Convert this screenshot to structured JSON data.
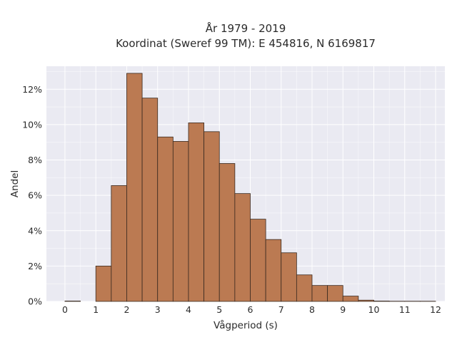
{
  "chart_data": {
    "type": "bar",
    "title_lines": [
      "År 1979 - 2019",
      "Koordinat (Sweref 99 TM): E 454816, N 6169817"
    ],
    "xlabel": "Vågperiod (s)",
    "ylabel": "Andel",
    "x_ticks": [
      "0",
      "1",
      "2",
      "3",
      "4",
      "5",
      "6",
      "7",
      "8",
      "9",
      "10",
      "11",
      "12"
    ],
    "y_ticks": [
      "0%",
      "2%",
      "4%",
      "6%",
      "8%",
      "10%",
      "12%"
    ],
    "xlim": [
      -0.6,
      12.3
    ],
    "ylim": [
      0,
      13.3
    ],
    "bin_width": 0.5,
    "bin_starts": [
      0,
      0.5,
      1,
      1.5,
      2,
      2.5,
      3,
      3.5,
      4,
      4.5,
      5,
      5.5,
      6,
      6.5,
      7,
      7.5,
      8,
      8.5,
      9,
      9.5,
      10,
      10.5,
      11,
      11.5
    ],
    "values": [
      0.02,
      0,
      2.0,
      6.55,
      12.9,
      11.5,
      9.3,
      9.05,
      10.1,
      9.6,
      7.8,
      6.1,
      4.65,
      3.5,
      2.75,
      1.5,
      0.9,
      0.9,
      0.3,
      0.07,
      0.02,
      0.01,
      0.01,
      0.01
    ],
    "grid": true,
    "colors": {
      "bar": "#bb7a52",
      "bar_edge": "#3a2a20",
      "plot_bg": "#eaeaf2",
      "grid": "#ffffff"
    }
  }
}
